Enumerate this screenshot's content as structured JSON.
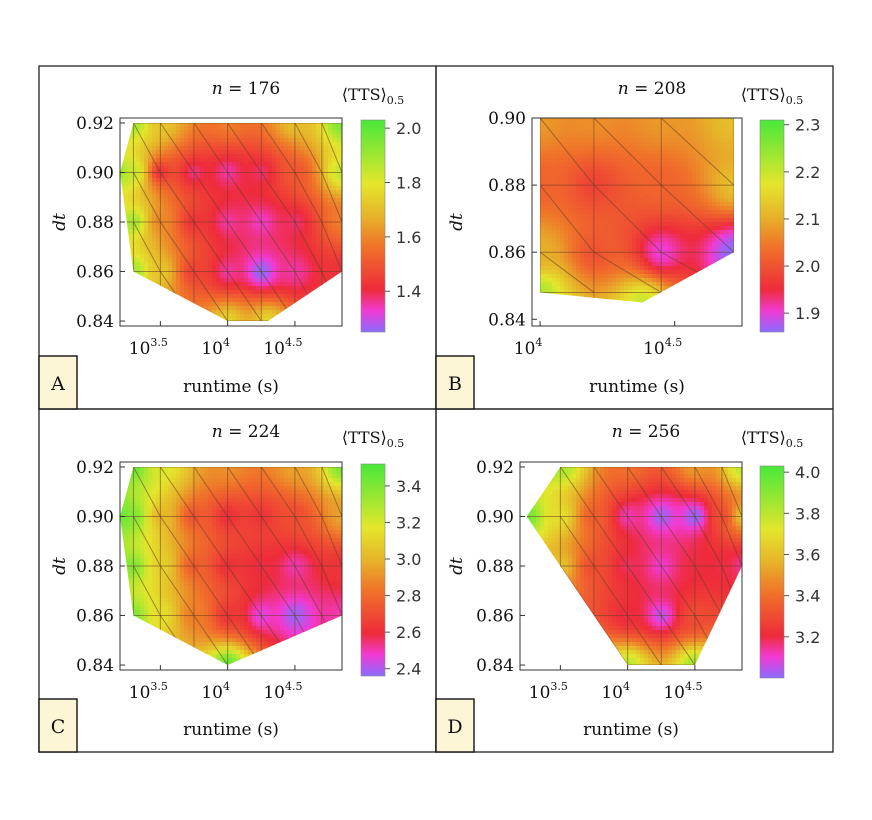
{
  "colors": {
    "low": "#8a6cff",
    "mid_low": "#ee2b3b",
    "mid": "#e6b52a",
    "high": "#49e83a",
    "badge_bg": "#fcf6d6"
  },
  "chart_data": [
    {
      "type": "heatmap",
      "badge": "A",
      "title": "n = 176",
      "title_n": "176",
      "xlabel": "runtime (s)",
      "ylabel": "dt",
      "legend_title": "⟨TTS⟩",
      "legend_sub": "0.5",
      "xlim_log10": [
        3.2,
        4.85
      ],
      "xticks": [
        {
          "base": "10",
          "exp": "3.5",
          "log10": 3.5
        },
        {
          "base": "10",
          "exp": "4",
          "log10": 4.0
        },
        {
          "base": "10",
          "exp": "4.5",
          "log10": 4.5
        }
      ],
      "ylim": [
        0.838,
        0.922
      ],
      "yticks": [
        "0.84",
        "0.86",
        "0.88",
        "0.90",
        "0.92"
      ],
      "colorbar_range": [
        1.25,
        2.03
      ],
      "colorbar_ticks": [
        "1.4",
        "1.6",
        "1.8",
        "2.0"
      ],
      "region": [
        [
          3.3,
          0.92
        ],
        [
          4.85,
          0.92
        ],
        [
          4.85,
          0.86
        ],
        [
          4.3,
          0.84
        ],
        [
          4.0,
          0.84
        ],
        [
          3.3,
          0.86
        ],
        [
          3.2,
          0.9
        ]
      ],
      "columns_log10": [
        3.3,
        3.5,
        3.75,
        4.0,
        4.25,
        4.5,
        4.7,
        4.85
      ],
      "rows": [
        0.84,
        0.86,
        0.88,
        0.9,
        0.92
      ],
      "points": [
        {
          "x": 3.2,
          "y": 0.9,
          "v": 1.9
        },
        {
          "x": 3.3,
          "y": 0.92,
          "v": 1.9
        },
        {
          "x": 3.5,
          "y": 0.92,
          "v": 1.72
        },
        {
          "x": 4.0,
          "y": 0.92,
          "v": 1.58
        },
        {
          "x": 4.5,
          "y": 0.92,
          "v": 1.7
        },
        {
          "x": 4.85,
          "y": 0.92,
          "v": 1.95
        },
        {
          "x": 3.3,
          "y": 0.9,
          "v": 1.85
        },
        {
          "x": 3.5,
          "y": 0.9,
          "v": 1.42
        },
        {
          "x": 3.75,
          "y": 0.9,
          "v": 1.37
        },
        {
          "x": 4.0,
          "y": 0.9,
          "v": 1.35
        },
        {
          "x": 4.25,
          "y": 0.9,
          "v": 1.38
        },
        {
          "x": 4.5,
          "y": 0.9,
          "v": 1.5
        },
        {
          "x": 4.85,
          "y": 0.9,
          "v": 1.85
        },
        {
          "x": 3.3,
          "y": 0.88,
          "v": 1.9
        },
        {
          "x": 3.5,
          "y": 0.88,
          "v": 1.6
        },
        {
          "x": 3.75,
          "y": 0.88,
          "v": 1.42
        },
        {
          "x": 4.0,
          "y": 0.88,
          "v": 1.35
        },
        {
          "x": 4.25,
          "y": 0.88,
          "v": 1.33
        },
        {
          "x": 4.5,
          "y": 0.88,
          "v": 1.38
        },
        {
          "x": 4.85,
          "y": 0.88,
          "v": 1.58
        },
        {
          "x": 3.3,
          "y": 0.86,
          "v": 1.9
        },
        {
          "x": 3.5,
          "y": 0.86,
          "v": 1.72
        },
        {
          "x": 3.75,
          "y": 0.86,
          "v": 1.45
        },
        {
          "x": 4.0,
          "y": 0.86,
          "v": 1.35
        },
        {
          "x": 4.25,
          "y": 0.86,
          "v": 1.25
        },
        {
          "x": 4.5,
          "y": 0.86,
          "v": 1.35
        },
        {
          "x": 4.85,
          "y": 0.86,
          "v": 1.42
        },
        {
          "x": 4.0,
          "y": 0.84,
          "v": 1.75
        },
        {
          "x": 4.3,
          "y": 0.84,
          "v": 1.75
        }
      ]
    },
    {
      "type": "heatmap",
      "badge": "B",
      "title": "n = 208",
      "title_n": "208",
      "xlabel": "runtime (s)",
      "ylabel": "dt",
      "legend_title": "⟨TTS⟩",
      "legend_sub": "0.5",
      "xlim_log10": [
        3.97,
        4.75
      ],
      "xticks": [
        {
          "base": "10",
          "exp": "",
          "show_exp": "4",
          "log10": 4.0
        },
        {
          "base": "10",
          "exp": "4.5",
          "log10": 4.5
        }
      ],
      "ylim": [
        0.838,
        0.9
      ],
      "yticks": [
        "0.84",
        "0.86",
        "0.88",
        "0.90"
      ],
      "colorbar_range": [
        1.86,
        2.31
      ],
      "colorbar_ticks": [
        "1.9",
        "2.0",
        "2.1",
        "2.2",
        "2.3"
      ],
      "region": [
        [
          4.0,
          0.9
        ],
        [
          4.72,
          0.9
        ],
        [
          4.72,
          0.86
        ],
        [
          4.38,
          0.845
        ],
        [
          4.0,
          0.848
        ]
      ],
      "columns_log10": [
        4.0,
        4.2,
        4.45,
        4.72
      ],
      "rows": [
        0.848,
        0.86,
        0.88,
        0.9
      ],
      "points": [
        {
          "x": 4.0,
          "y": 0.9,
          "v": 2.08
        },
        {
          "x": 4.2,
          "y": 0.9,
          "v": 2.07
        },
        {
          "x": 4.45,
          "y": 0.9,
          "v": 2.08
        },
        {
          "x": 4.72,
          "y": 0.9,
          "v": 2.12
        },
        {
          "x": 4.0,
          "y": 0.88,
          "v": 2.02
        },
        {
          "x": 4.2,
          "y": 0.88,
          "v": 1.98
        },
        {
          "x": 4.45,
          "y": 0.88,
          "v": 2.02
        },
        {
          "x": 4.72,
          "y": 0.88,
          "v": 2.12
        },
        {
          "x": 4.0,
          "y": 0.86,
          "v": 2.1
        },
        {
          "x": 4.2,
          "y": 0.86,
          "v": 2.0
        },
        {
          "x": 4.45,
          "y": 0.86,
          "v": 1.9
        },
        {
          "x": 4.72,
          "y": 0.86,
          "v": 1.86
        },
        {
          "x": 4.0,
          "y": 0.848,
          "v": 2.22
        },
        {
          "x": 4.38,
          "y": 0.845,
          "v": 2.2
        }
      ]
    },
    {
      "type": "heatmap",
      "badge": "C",
      "title": "n = 224",
      "title_n": "224",
      "xlabel": "runtime (s)",
      "ylabel": "dt",
      "legend_title": "⟨TTS⟩",
      "legend_sub": "0.5",
      "xlim_log10": [
        3.2,
        4.85
      ],
      "xticks": [
        {
          "base": "10",
          "exp": "3.5",
          "log10": 3.5
        },
        {
          "base": "10",
          "exp": "4",
          "log10": 4.0
        },
        {
          "base": "10",
          "exp": "4.5",
          "log10": 4.5
        }
      ],
      "ylim": [
        0.838,
        0.922
      ],
      "yticks": [
        "0.84",
        "0.86",
        "0.88",
        "0.90",
        "0.92"
      ],
      "colorbar_range": [
        2.36,
        3.52
      ],
      "colorbar_ticks": [
        "2.4",
        "2.6",
        "2.8",
        "3.0",
        "3.2",
        "3.4"
      ],
      "region": [
        [
          3.3,
          0.92
        ],
        [
          4.85,
          0.92
        ],
        [
          4.85,
          0.86
        ],
        [
          4.0,
          0.84
        ],
        [
          3.3,
          0.86
        ],
        [
          3.2,
          0.9
        ]
      ],
      "columns_log10": [
        3.3,
        3.5,
        3.75,
        4.0,
        4.25,
        4.5,
        4.7,
        4.85
      ],
      "rows": [
        0.84,
        0.86,
        0.88,
        0.9,
        0.92
      ],
      "points": [
        {
          "x": 3.2,
          "y": 0.9,
          "v": 3.45
        },
        {
          "x": 3.3,
          "y": 0.92,
          "v": 3.45
        },
        {
          "x": 3.5,
          "y": 0.92,
          "v": 3.2
        },
        {
          "x": 4.0,
          "y": 0.92,
          "v": 2.9
        },
        {
          "x": 4.5,
          "y": 0.92,
          "v": 2.95
        },
        {
          "x": 4.85,
          "y": 0.92,
          "v": 3.4
        },
        {
          "x": 3.3,
          "y": 0.9,
          "v": 3.4
        },
        {
          "x": 3.5,
          "y": 0.9,
          "v": 3.0
        },
        {
          "x": 3.75,
          "y": 0.9,
          "v": 2.72
        },
        {
          "x": 4.0,
          "y": 0.9,
          "v": 2.6
        },
        {
          "x": 4.25,
          "y": 0.9,
          "v": 2.62
        },
        {
          "x": 4.5,
          "y": 0.9,
          "v": 2.7
        },
        {
          "x": 4.85,
          "y": 0.9,
          "v": 2.95
        },
        {
          "x": 3.3,
          "y": 0.88,
          "v": 3.4
        },
        {
          "x": 3.5,
          "y": 0.88,
          "v": 3.1
        },
        {
          "x": 3.75,
          "y": 0.88,
          "v": 2.75
        },
        {
          "x": 4.0,
          "y": 0.88,
          "v": 2.6
        },
        {
          "x": 4.25,
          "y": 0.88,
          "v": 2.58
        },
        {
          "x": 4.5,
          "y": 0.88,
          "v": 2.5
        },
        {
          "x": 4.85,
          "y": 0.88,
          "v": 2.62
        },
        {
          "x": 3.3,
          "y": 0.86,
          "v": 3.4
        },
        {
          "x": 3.5,
          "y": 0.86,
          "v": 3.15
        },
        {
          "x": 3.75,
          "y": 0.86,
          "v": 2.85
        },
        {
          "x": 4.0,
          "y": 0.86,
          "v": 2.62
        },
        {
          "x": 4.25,
          "y": 0.86,
          "v": 2.45
        },
        {
          "x": 4.5,
          "y": 0.86,
          "v": 2.38
        },
        {
          "x": 4.85,
          "y": 0.86,
          "v": 2.5
        },
        {
          "x": 4.0,
          "y": 0.84,
          "v": 3.45
        }
      ]
    },
    {
      "type": "heatmap",
      "badge": "D",
      "title": "n = 256",
      "title_n": "256",
      "xlabel": "runtime (s)",
      "ylabel": "dt",
      "legend_title": "⟨TTS⟩",
      "legend_sub": "0.5",
      "xlim_log10": [
        3.2,
        4.85
      ],
      "xticks": [
        {
          "base": "10",
          "exp": "3.5",
          "log10": 3.5
        },
        {
          "base": "10",
          "exp": "4",
          "log10": 4.0
        },
        {
          "base": "10",
          "exp": "4.5",
          "log10": 4.5
        }
      ],
      "ylim": [
        0.838,
        0.922
      ],
      "yticks": [
        "0.84",
        "0.86",
        "0.88",
        "0.90",
        "0.92"
      ],
      "colorbar_range": [
        3.0,
        4.03
      ],
      "colorbar_ticks": [
        "3.2",
        "3.4",
        "3.6",
        "3.8",
        "4.0"
      ],
      "region": [
        [
          3.5,
          0.92
        ],
        [
          4.85,
          0.92
        ],
        [
          4.85,
          0.88
        ],
        [
          4.5,
          0.84
        ],
        [
          4.0,
          0.84
        ],
        [
          3.5,
          0.88
        ],
        [
          3.25,
          0.9
        ]
      ],
      "columns_log10": [
        3.5,
        3.75,
        4.0,
        4.25,
        4.5,
        4.7,
        4.85
      ],
      "rows": [
        0.84,
        0.86,
        0.88,
        0.9,
        0.92
      ],
      "points": [
        {
          "x": 3.25,
          "y": 0.9,
          "v": 3.95
        },
        {
          "x": 3.5,
          "y": 0.92,
          "v": 3.85
        },
        {
          "x": 4.0,
          "y": 0.92,
          "v": 3.4
        },
        {
          "x": 4.5,
          "y": 0.92,
          "v": 3.5
        },
        {
          "x": 4.85,
          "y": 0.92,
          "v": 3.8
        },
        {
          "x": 3.5,
          "y": 0.9,
          "v": 3.7
        },
        {
          "x": 3.75,
          "y": 0.9,
          "v": 3.35
        },
        {
          "x": 4.0,
          "y": 0.9,
          "v": 3.12
        },
        {
          "x": 4.25,
          "y": 0.9,
          "v": 3.02
        },
        {
          "x": 4.5,
          "y": 0.9,
          "v": 3.0
        },
        {
          "x": 4.7,
          "y": 0.9,
          "v": 3.3
        },
        {
          "x": 4.85,
          "y": 0.9,
          "v": 3.6
        },
        {
          "x": 3.5,
          "y": 0.88,
          "v": 3.6
        },
        {
          "x": 3.75,
          "y": 0.88,
          "v": 3.3
        },
        {
          "x": 4.0,
          "y": 0.88,
          "v": 3.18
        },
        {
          "x": 4.25,
          "y": 0.88,
          "v": 3.1
        },
        {
          "x": 4.5,
          "y": 0.88,
          "v": 3.2
        },
        {
          "x": 4.7,
          "y": 0.88,
          "v": 3.2
        },
        {
          "x": 4.85,
          "y": 0.88,
          "v": 3.15
        },
        {
          "x": 4.0,
          "y": 0.86,
          "v": 3.2
        },
        {
          "x": 4.25,
          "y": 0.86,
          "v": 3.05
        },
        {
          "x": 4.5,
          "y": 0.86,
          "v": 3.3
        },
        {
          "x": 4.0,
          "y": 0.84,
          "v": 3.8
        },
        {
          "x": 4.5,
          "y": 0.84,
          "v": 3.85
        }
      ]
    }
  ]
}
